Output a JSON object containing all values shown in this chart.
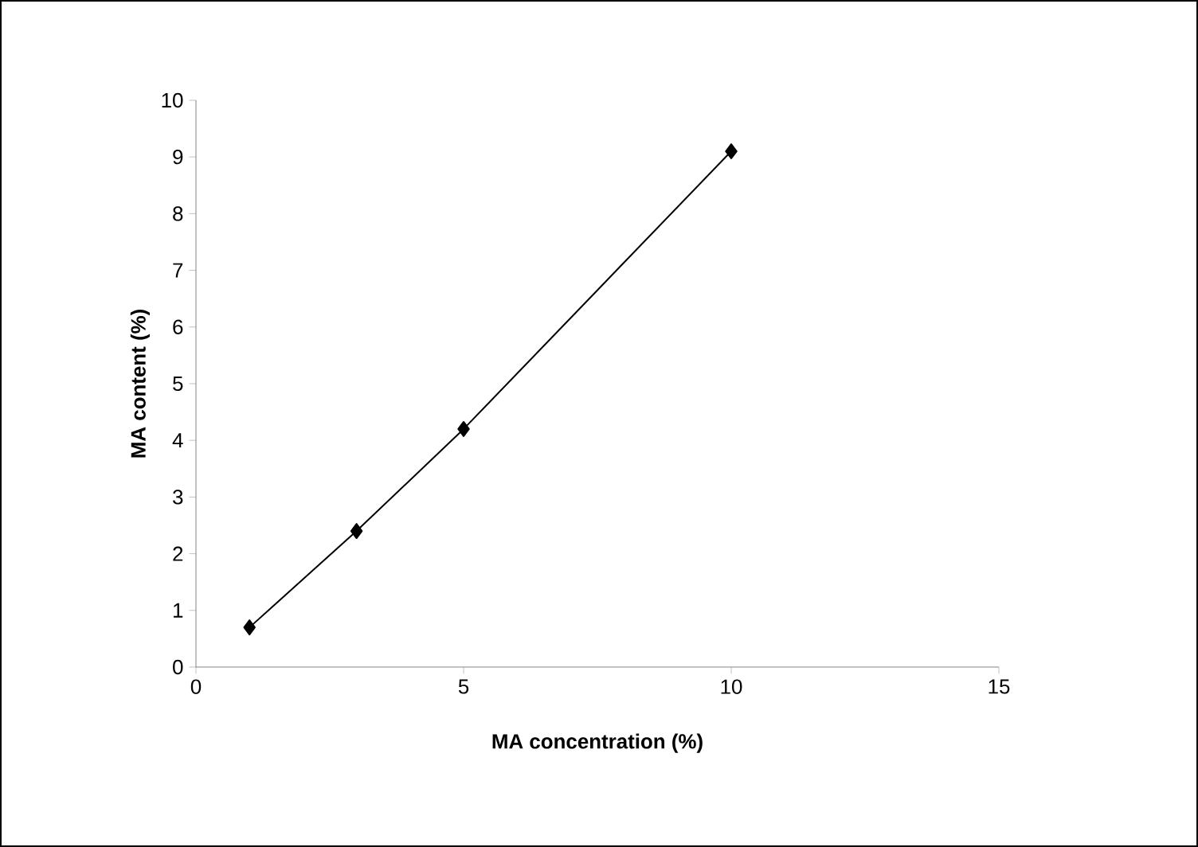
{
  "chart_data": {
    "type": "line",
    "xlabel": "MA concentration (%)",
    "ylabel": "MA content (%)",
    "x": [
      1,
      3,
      5,
      10
    ],
    "series": [
      {
        "color": "#000000",
        "values": [
          0.7,
          2.4,
          4.2,
          9.1
        ]
      }
    ],
    "xlim": [
      0,
      15
    ],
    "xticks": [
      0,
      5,
      10,
      15
    ],
    "ylim": [
      0,
      10
    ],
    "yticks": [
      0,
      1,
      2,
      3,
      4,
      5,
      6,
      7,
      8,
      9,
      10
    ],
    "marker": "diamond",
    "line_style": "solid"
  }
}
